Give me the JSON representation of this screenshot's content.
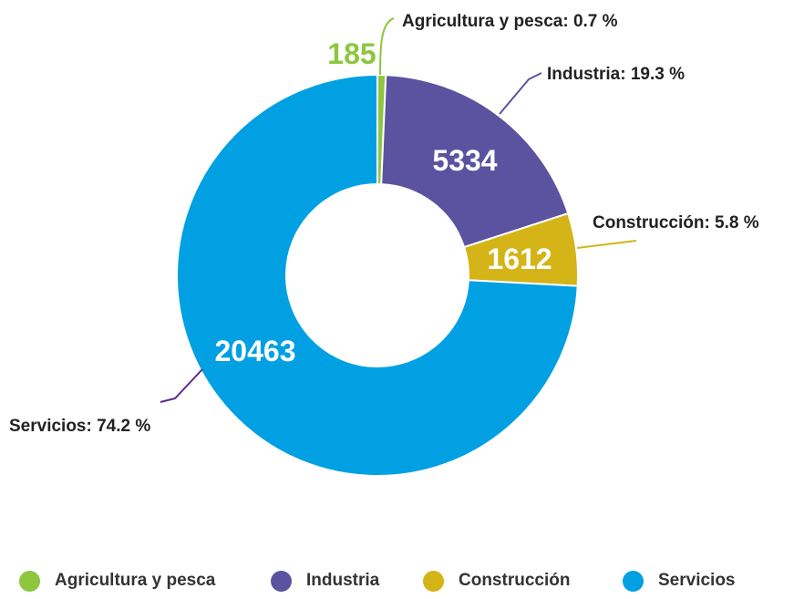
{
  "chart_data": {
    "type": "donut",
    "title": "",
    "series": [
      {
        "name": "Agricultura y pesca",
        "value": 185,
        "value_label": "185",
        "callout": "Agricultura y pesca: 0.7 %",
        "color": "#8dc63f"
      },
      {
        "name": "Industria",
        "value": 5334,
        "value_label": "5334",
        "callout": "Industria: 19.3 %",
        "color": "#5b52a0"
      },
      {
        "name": "Construcción",
        "value": 1612,
        "value_label": "1612",
        "callout": "Construcción: 5.8 %",
        "color": "#d4b417"
      },
      {
        "name": "Servicios",
        "value": 20463,
        "value_label": "20463",
        "callout": "Servicios: 74.2 %",
        "color": "#00a0e3"
      }
    ],
    "legend_position": "bottom"
  },
  "legend": {
    "items": [
      {
        "label": "Agricultura y pesca",
        "color": "#8dc63f"
      },
      {
        "label": "Industria",
        "color": "#5b52a0"
      },
      {
        "label": "Construcción",
        "color": "#d4b417"
      },
      {
        "label": "Servicios",
        "color": "#00a0e3"
      }
    ]
  }
}
